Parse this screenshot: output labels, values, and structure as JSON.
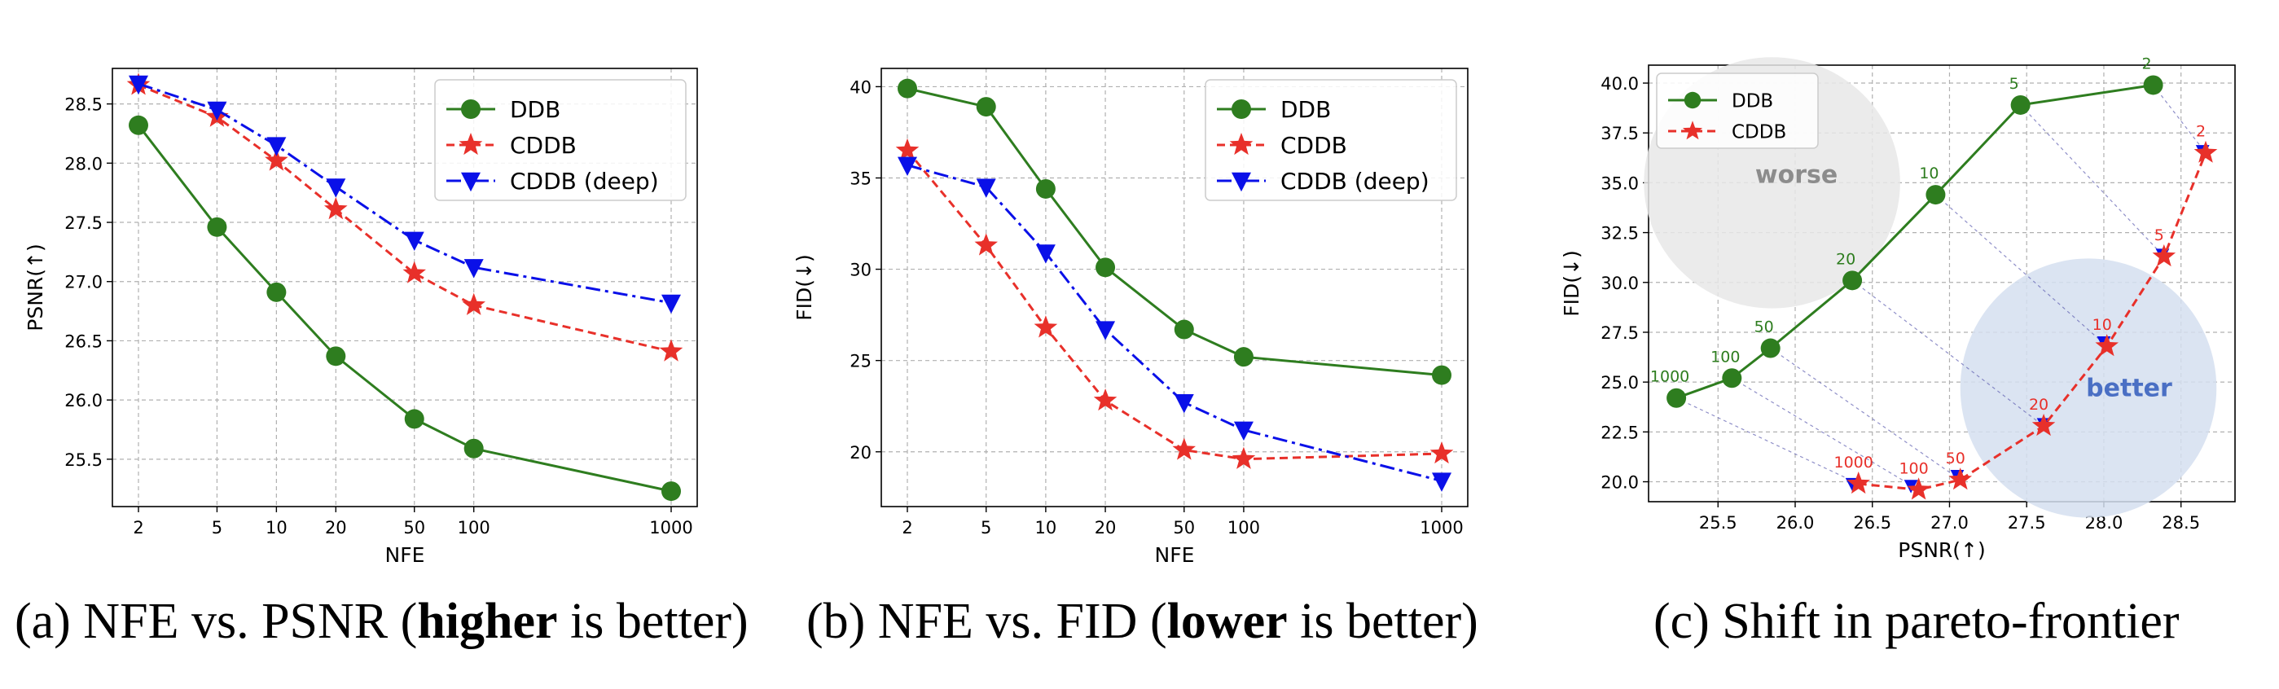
{
  "captions": [
    {
      "pre": "(a) NFE vs. PSNR (",
      "bold": "higher",
      "post": " is better)"
    },
    {
      "pre": "(b) NFE vs. FID (",
      "bold": "lower",
      "post": " is better)"
    },
    {
      "pre": "(c) Shift in pareto-frontier",
      "bold": "",
      "post": ""
    }
  ],
  "colors": {
    "ddb": "#2e7d1f",
    "cddb": "#e8302a",
    "cddb_deep": "#0a10e8",
    "worse_region": "#e8e8e8",
    "better_region": "#d5dff0",
    "worse_text": "#8c8c8c",
    "better_text": "#4a6fc4"
  },
  "chart_data": [
    {
      "type": "line",
      "xscale": "log",
      "x": [
        2,
        5,
        10,
        20,
        50,
        100,
        1000
      ],
      "xticks": [
        "2",
        "5",
        "10",
        "20",
        "50",
        "100",
        "1000"
      ],
      "xlabel": "NFE",
      "ylabel": "PSNR(↑)",
      "ylim": [
        25.1,
        28.8
      ],
      "yticks": [
        "25.5",
        "26.0",
        "26.5",
        "27.0",
        "27.5",
        "28.0",
        "28.5"
      ],
      "grid": true,
      "legend": "top-right",
      "series": [
        {
          "name": "DDB",
          "values": [
            28.32,
            27.46,
            26.91,
            26.37,
            25.84,
            25.59,
            25.23
          ]
        },
        {
          "name": "CDDB",
          "values": [
            28.66,
            28.39,
            28.02,
            27.61,
            27.07,
            26.8,
            26.41
          ]
        },
        {
          "name": "CDDB (deep)",
          "values": [
            28.67,
            28.45,
            28.15,
            27.8,
            27.35,
            27.12,
            26.82
          ]
        }
      ]
    },
    {
      "type": "line",
      "xscale": "log",
      "x": [
        2,
        5,
        10,
        20,
        50,
        100,
        1000
      ],
      "xticks": [
        "2",
        "5",
        "10",
        "20",
        "50",
        "100",
        "1000"
      ],
      "xlabel": "NFE",
      "ylabel": "FID(↓)",
      "ylim": [
        17.0,
        41.0
      ],
      "yticks": [
        "20",
        "25",
        "30",
        "35",
        "40"
      ],
      "grid": true,
      "legend": "top-right",
      "series": [
        {
          "name": "DDB",
          "values": [
            39.9,
            38.9,
            34.4,
            30.1,
            26.7,
            25.2,
            24.2
          ]
        },
        {
          "name": "CDDB",
          "values": [
            36.5,
            31.3,
            26.8,
            22.8,
            20.1,
            19.6,
            19.9
          ]
        },
        {
          "name": "CDDB (deep)",
          "values": [
            35.7,
            34.5,
            30.9,
            26.7,
            22.7,
            21.2,
            18.4
          ]
        }
      ]
    },
    {
      "type": "scatter",
      "xlabel": "PSNR(↑)",
      "ylabel": "FID(↓)",
      "xlim": [
        25.05,
        28.85
      ],
      "ylim": [
        19.0,
        40.9
      ],
      "xticks": [
        "25.5",
        "26.0",
        "26.5",
        "27.0",
        "27.5",
        "28.0",
        "28.5"
      ],
      "yticks": [
        "20.0",
        "22.5",
        "25.0",
        "27.5",
        "30.0",
        "32.5",
        "35.0",
        "37.5",
        "40.0"
      ],
      "grid": true,
      "legend": "top-left",
      "regions": [
        {
          "label": "worse",
          "cx": 25.85,
          "cy": 35.0,
          "rx": 0.83,
          "ry": 6.3
        },
        {
          "label": "better",
          "cx": 27.9,
          "cy": 24.7,
          "rx": 0.83,
          "ry": 6.5
        }
      ],
      "series": [
        {
          "name": "DDB",
          "points": [
            [
              25.23,
              24.2
            ],
            [
              25.59,
              25.2
            ],
            [
              25.84,
              26.7
            ],
            [
              26.37,
              30.1
            ],
            [
              26.91,
              34.4
            ],
            [
              27.46,
              38.9
            ],
            [
              28.32,
              39.9
            ]
          ],
          "labels": [
            "1000",
            "100",
            "50",
            "20",
            "10",
            "5",
            "2"
          ]
        },
        {
          "name": "CDDB",
          "points": [
            [
              26.41,
              19.9
            ],
            [
              26.8,
              19.6
            ],
            [
              27.07,
              20.1
            ],
            [
              27.61,
              22.8
            ],
            [
              28.02,
              26.8
            ],
            [
              28.39,
              31.3
            ],
            [
              28.66,
              36.5
            ]
          ],
          "labels": [
            "1000",
            "100",
            "50",
            "20",
            "10",
            "5",
            "2"
          ]
        },
        {
          "name": "",
          "points": [
            [
              26.37,
              19.9
            ],
            [
              26.75,
              19.8
            ],
            [
              27.05,
              20.3
            ],
            [
              27.61,
              22.9
            ],
            [
              28.0,
              27.0
            ],
            [
              28.38,
              31.4
            ],
            [
              28.64,
              36.6
            ]
          ],
          "labels": []
        }
      ],
      "connectors": [
        [
          [
            25.23,
            24.2
          ],
          [
            26.41,
            19.9
          ]
        ],
        [
          [
            25.59,
            25.2
          ],
          [
            26.8,
            19.6
          ]
        ],
        [
          [
            25.84,
            26.7
          ],
          [
            27.07,
            20.1
          ]
        ],
        [
          [
            26.37,
            30.1
          ],
          [
            27.61,
            22.8
          ]
        ],
        [
          [
            26.91,
            34.4
          ],
          [
            28.02,
            26.8
          ]
        ],
        [
          [
            27.46,
            38.9
          ],
          [
            28.39,
            31.3
          ]
        ],
        [
          [
            28.32,
            39.9
          ],
          [
            28.66,
            36.5
          ]
        ]
      ]
    }
  ]
}
